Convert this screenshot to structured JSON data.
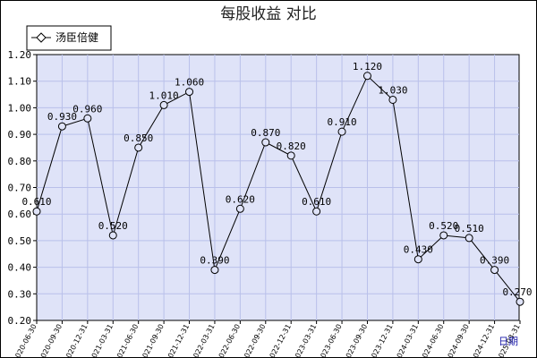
{
  "chart_data": {
    "type": "line",
    "title": "每股收益  对比",
    "x_unit_label": "日期",
    "ylim": [
      0.2,
      1.2
    ],
    "ytick_step": 0.1,
    "grid": true,
    "legend_position": "top-left",
    "colors": {
      "plot_background": "#dfe3f8",
      "grid": "#b9c0ea",
      "line": "#000000",
      "marker_fill": "#dfe3f8"
    },
    "categories": [
      "2020-06-30",
      "2020-09-30",
      "2020-12-31",
      "2021-03-31",
      "2021-06-30",
      "2021-09-30",
      "2021-12-31",
      "2022-03-31",
      "2022-06-30",
      "2022-09-30",
      "2022-12-31",
      "2023-03-31",
      "2023-06-30",
      "2023-09-30",
      "2023-12-31",
      "2024-03-31",
      "2024-06-30",
      "2024-09-30",
      "2024-12-31",
      "2025-03-31"
    ],
    "series": [
      {
        "name": "汤臣倍健",
        "values": [
          0.61,
          0.93,
          0.96,
          0.52,
          0.85,
          1.01,
          1.06,
          0.39,
          0.62,
          0.87,
          0.82,
          0.61,
          0.91,
          1.12,
          1.03,
          0.43,
          0.52,
          0.51,
          0.39,
          0.27
        ],
        "labels": [
          "0.610",
          "0.930",
          "0.960",
          "0.520",
          "0.850",
          "1.010",
          "1.060",
          "0.390",
          "0.620",
          "0.870",
          "0.820",
          "0.610",
          "0.910",
          "1.120",
          "1.030",
          "0.430",
          "0.520",
          "0.510",
          "0.390",
          "0.270"
        ]
      }
    ]
  }
}
